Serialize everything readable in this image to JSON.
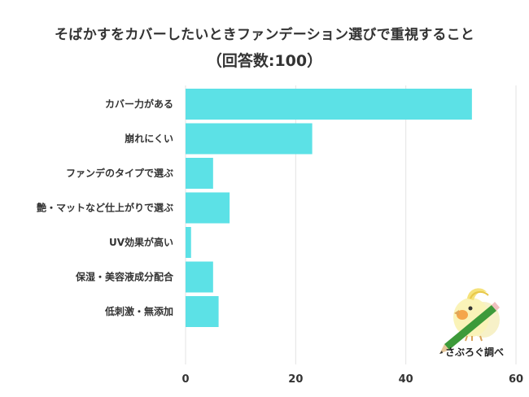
{
  "chart_data": {
    "type": "bar",
    "orientation": "horizontal",
    "title": "そばかすをカバーしたいときファンデーション選びで重視すること",
    "subtitle": "（回答数:100）",
    "categories": [
      "カバー力がある",
      "崩れにくい",
      "ファンデのタイプで選ぶ",
      "艶・マットなど仕上がりで選ぶ",
      "UV効果が高い",
      "保湿・美容液成分配合",
      "低刺激・無添加"
    ],
    "values": [
      52,
      23,
      5,
      8,
      1,
      5,
      6
    ],
    "xlim": [
      0,
      60
    ],
    "xticks": [
      "0",
      "20",
      "40",
      "60"
    ],
    "grid": true,
    "bar_color": "#5ce1e6"
  },
  "brand": {
    "label": "さぶろぐ調べ",
    "mascot_icon": "bird-mascot-icon",
    "pencil_icon": "pencil-icon"
  }
}
